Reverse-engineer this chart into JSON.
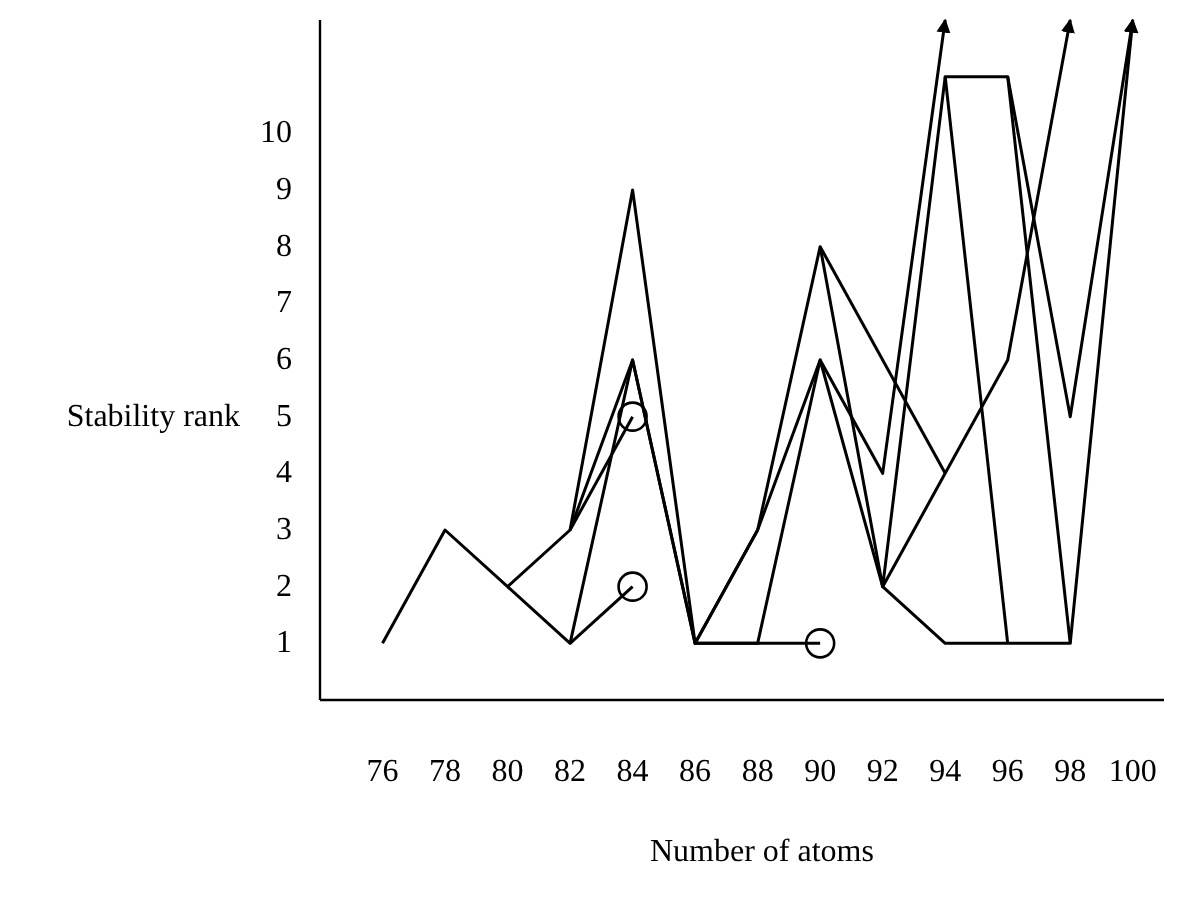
{
  "chart_data": {
    "type": "line",
    "xlabel": "Number of atoms",
    "ylabel": "Stability rank",
    "x": [
      76,
      78,
      80,
      82,
      84,
      86,
      88,
      90,
      92,
      94,
      96,
      98,
      100
    ],
    "xlim": [
      74,
      101
    ],
    "ylim": [
      0,
      12
    ],
    "xticks": [
      76,
      78,
      80,
      82,
      84,
      86,
      88,
      90,
      92,
      94,
      96,
      98,
      100
    ],
    "yticks": [
      1,
      2,
      3,
      4,
      5,
      6,
      7,
      8,
      9,
      10
    ],
    "grid": false,
    "marker": "none",
    "line_style": "solid",
    "series": [
      {
        "color": "#000000",
        "values": [
          1,
          3,
          2,
          3,
          9,
          1,
          3,
          8,
          2,
          11,
          11,
          5,
          12
        ]
      },
      {
        "color": "#000000",
        "values": [
          null,
          null,
          null,
          3,
          6,
          1,
          3,
          6,
          4,
          12,
          null,
          null,
          null
        ]
      },
      {
        "color": "#000000",
        "values": [
          null,
          null,
          2,
          1,
          6,
          1,
          1,
          6,
          2,
          4,
          6,
          12,
          null
        ]
      },
      {
        "color": "#000000",
        "values": [
          null,
          null,
          null,
          1,
          2,
          null,
          null,
          null,
          null,
          null,
          null,
          null,
          null
        ]
      },
      {
        "color": "#000000",
        "values": [
          null,
          null,
          null,
          3,
          5,
          null,
          null,
          null,
          null,
          null,
          null,
          null,
          null
        ]
      },
      {
        "color": "#000000",
        "values": [
          null,
          null,
          null,
          null,
          null,
          1,
          1,
          1,
          null,
          null,
          null,
          null,
          null
        ]
      },
      {
        "color": "#000000",
        "x": [
          90,
          94
        ],
        "values": [
          8,
          4
        ]
      },
      {
        "color": "#000000",
        "values": [
          null,
          null,
          null,
          null,
          null,
          null,
          null,
          null,
          2,
          1,
          1,
          1,
          12
        ]
      },
      {
        "color": "#000000",
        "x": [
          94,
          96
        ],
        "values": [
          11,
          1
        ]
      },
      {
        "color": "#000000",
        "x": [
          96,
          98
        ],
        "values": [
          11,
          1
        ]
      },
      {
        "type": "scatter",
        "marker": "circle",
        "color": "#000000",
        "x": [
          84,
          84,
          90
        ],
        "values": [
          2,
          5,
          1
        ]
      }
    ]
  }
}
